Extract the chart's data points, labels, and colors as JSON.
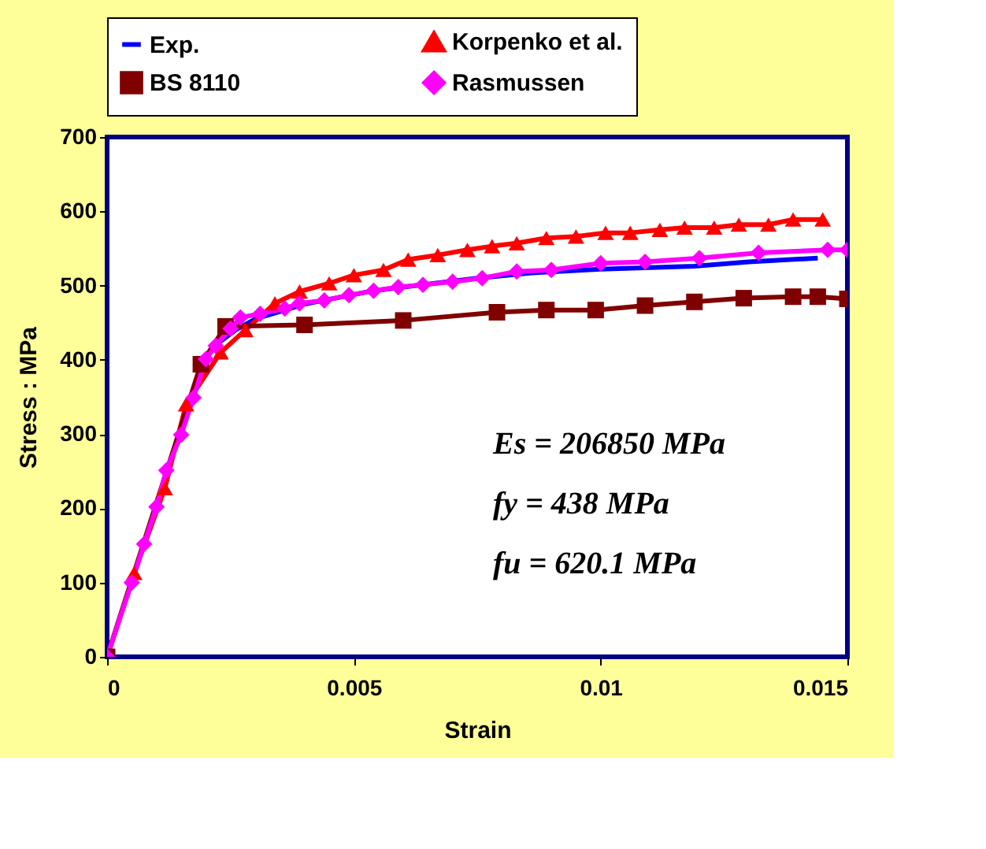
{
  "chart_data": {
    "type": "line",
    "xlabel": "Strain",
    "ylabel": "Stress : MPa",
    "xlim": [
      0,
      0.015
    ],
    "xticks": [
      0,
      0.005,
      0.01,
      0.015
    ],
    "ylim": [
      0,
      700
    ],
    "yticks": [
      0,
      100,
      200,
      300,
      400,
      500,
      600,
      700
    ],
    "grid": false,
    "legend": "top",
    "line_style": "solid",
    "annotations": [
      "Es = 206850 MPa",
      "fy = 438  MPa",
      "fu = 620.1 MPa"
    ],
    "series": [
      {
        "name": "Exp.",
        "color": "#0000ff",
        "marker": "none",
        "x": [
          0.0022,
          0.0026,
          0.003,
          0.0035,
          0.004,
          0.0054,
          0.0065,
          0.0075,
          0.0086,
          0.01,
          0.0119,
          0.013,
          0.0144
        ],
        "values": [
          420,
          440,
          455,
          465,
          475,
          493,
          null,
          510,
          517,
          522,
          526,
          532,
          537
        ]
      },
      {
        "name": "Korpenko et al.",
        "color": "#ff0000",
        "marker": "triangle",
        "x": [
          0,
          0.00055,
          0.00117,
          0.0016,
          0.0023,
          0.0028,
          0.0034,
          0.0039,
          0.0045,
          0.005,
          0.0056,
          0.0061,
          0.0067,
          0.0073,
          0.0078,
          0.0083,
          0.0089,
          0.0095,
          0.0101,
          0.0106,
          0.0112,
          0.0117,
          0.0123,
          0.0128,
          0.0134,
          0.0139,
          0.0145
        ],
        "values": [
          0,
          113,
          227,
          340,
          410,
          440,
          476,
          492,
          503,
          514,
          521,
          535,
          541,
          548,
          553,
          557,
          564,
          566,
          571,
          571,
          575,
          578,
          578,
          582,
          582,
          589,
          589
        ]
      },
      {
        "name": "BS 8110",
        "color": "#800000",
        "marker": "square",
        "x": [
          0,
          0.0019,
          0.0024,
          0.004,
          0.006,
          0.0079,
          0.0089,
          0.0099,
          0.0109,
          0.0119,
          0.0129,
          0.0139,
          0.0144,
          0.015
        ],
        "values": [
          0,
          394,
          445,
          447,
          453,
          464,
          467,
          467,
          473,
          478,
          483,
          485,
          485,
          482
        ]
      },
      {
        "name": "Rasmussen",
        "color": "#ff00ff",
        "marker": "diamond",
        "x": [
          0,
          0.0005,
          0.00075,
          0.001,
          0.0012,
          0.0015,
          0.00175,
          0.002,
          0.0022,
          0.0025,
          0.0027,
          0.0031,
          0.0036,
          0.0039,
          0.0044,
          0.0049,
          0.0054,
          0.0059,
          0.0064,
          0.007,
          0.0076,
          0.0083,
          0.009,
          0.01,
          0.0109,
          0.012,
          0.0132,
          0.0146,
          0.015
        ],
        "values": [
          0,
          100,
          152,
          202,
          251,
          299,
          349,
          401,
          419,
          442,
          457,
          462,
          469,
          476,
          480,
          487,
          493,
          498,
          501,
          505,
          510,
          519,
          521,
          530,
          532,
          537,
          544,
          548,
          548
        ]
      }
    ]
  }
}
